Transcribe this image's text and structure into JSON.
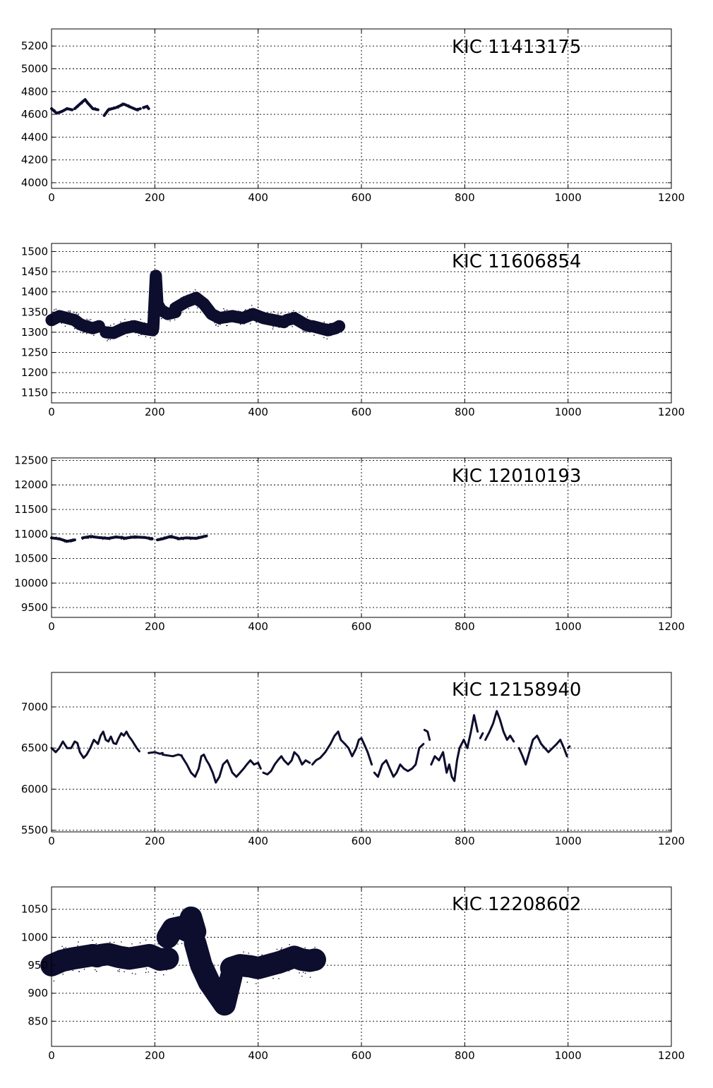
{
  "series_color": "#0d0d2e",
  "chart_data": [
    {
      "type": "scatter",
      "title": "KIC 11413175",
      "xlabel": "",
      "ylabel": "",
      "xlim": [
        0,
        1200
      ],
      "ylim": [
        3950,
        5350
      ],
      "xticks": [
        0,
        200,
        400,
        600,
        800,
        1000,
        1200
      ],
      "yticks": [
        4000,
        4200,
        4400,
        4600,
        4800,
        5000,
        5200
      ],
      "grid": true,
      "noise": 10,
      "segments": [
        {
          "x": [
            0,
            10,
            20,
            30,
            40
          ],
          "y": [
            4650,
            4610,
            4625,
            4650,
            4640
          ]
        },
        {
          "x": [
            45,
            55,
            65,
            70,
            80,
            90
          ],
          "y": [
            4650,
            4690,
            4730,
            4700,
            4650,
            4640
          ]
        },
        {
          "x": [
            102,
            110,
            125,
            140,
            155,
            165,
            172
          ],
          "y": [
            4590,
            4640,
            4660,
            4690,
            4660,
            4640,
            4650
          ]
        },
        {
          "x": [
            178,
            185,
            188
          ],
          "y": [
            4660,
            4670,
            4650
          ]
        }
      ]
    },
    {
      "type": "scatter",
      "title": "KIC 11606854",
      "xlabel": "",
      "ylabel": "",
      "xlim": [
        0,
        1200
      ],
      "ylim": [
        1125,
        1520
      ],
      "xticks": [
        0,
        200,
        400,
        600,
        800,
        1000,
        1200
      ],
      "yticks": [
        1150,
        1200,
        1250,
        1300,
        1350,
        1400,
        1450,
        1500
      ],
      "grid": true,
      "noise": 15,
      "segments": [
        {
          "x": [
            0,
            15,
            30,
            45,
            55
          ],
          "y": [
            1330,
            1340,
            1335,
            1330,
            1320
          ]
        },
        {
          "x": [
            55,
            65,
            80,
            92
          ],
          "y": [
            1320,
            1315,
            1310,
            1315
          ]
        },
        {
          "x": [
            105,
            120,
            140,
            160,
            180,
            196
          ],
          "y": [
            1300,
            1298,
            1310,
            1315,
            1308,
            1305
          ]
        },
        {
          "x": [
            197,
            202,
            205,
            212,
            225,
            240
          ],
          "y": [
            1310,
            1440,
            1370,
            1355,
            1345,
            1350
          ]
        },
        {
          "x": [
            240,
            260,
            280,
            295,
            310,
            325
          ],
          "y": [
            1360,
            1375,
            1385,
            1370,
            1345,
            1335
          ]
        },
        {
          "x": [
            325,
            350,
            370,
            390,
            410,
            430,
            450
          ],
          "y": [
            1335,
            1340,
            1335,
            1345,
            1335,
            1330,
            1325
          ]
        },
        {
          "x": [
            455,
            470,
            490,
            500
          ],
          "y": [
            1330,
            1335,
            1320,
            1315
          ]
        },
        {
          "x": [
            505,
            520,
            535,
            550,
            557
          ],
          "y": [
            1315,
            1310,
            1305,
            1310,
            1315
          ]
        }
      ]
    },
    {
      "type": "scatter",
      "title": "KIC 12010193",
      "xlabel": "",
      "ylabel": "",
      "xlim": [
        0,
        1200
      ],
      "ylim": [
        9300,
        12550
      ],
      "xticks": [
        0,
        200,
        400,
        600,
        800,
        1000,
        1200
      ],
      "yticks": [
        9500,
        10000,
        10500,
        11000,
        11500,
        12000,
        12500
      ],
      "grid": true,
      "noise": 22,
      "segments": [
        {
          "x": [
            0,
            15,
            30,
            45
          ],
          "y": [
            10920,
            10900,
            10850,
            10880
          ]
        },
        {
          "x": [
            60,
            75,
            90,
            110,
            125,
            140
          ],
          "y": [
            10920,
            10950,
            10930,
            10910,
            10940,
            10920
          ]
        },
        {
          "x": [
            140,
            160,
            180,
            195
          ],
          "y": [
            10910,
            10940,
            10930,
            10900
          ]
        },
        {
          "x": [
            205,
            215,
            230,
            245
          ],
          "y": [
            10880,
            10900,
            10950,
            10910
          ]
        },
        {
          "x": [
            245,
            260,
            280,
            300
          ],
          "y": [
            10900,
            10920,
            10910,
            10960
          ]
        }
      ]
    },
    {
      "type": "line",
      "title": "KIC 12158940",
      "xlabel": "",
      "ylabel": "",
      "xlim": [
        0,
        1200
      ],
      "ylim": [
        5480,
        7420
      ],
      "xticks": [
        0,
        200,
        400,
        600,
        800,
        1000,
        1200
      ],
      "yticks": [
        5500,
        6000,
        6500,
        7000
      ],
      "grid": true,
      "noise": 0,
      "segments": [
        {
          "x": [
            0,
            8,
            15,
            22,
            30,
            38,
            45,
            50,
            55,
            62,
            68,
            75,
            82,
            90,
            95,
            100,
            105,
            110,
            115,
            120,
            125,
            130,
            135,
            140,
            145,
            150,
            155,
            160,
            165,
            170
          ],
          "y": [
            6500,
            6450,
            6500,
            6580,
            6500,
            6500,
            6580,
            6560,
            6450,
            6380,
            6420,
            6500,
            6600,
            6550,
            6650,
            6700,
            6600,
            6580,
            6640,
            6560,
            6550,
            6620,
            6680,
            6650,
            6700,
            6640,
            6600,
            6550,
            6500,
            6460
          ]
        },
        {
          "x": [
            188,
            200,
            210,
            215
          ],
          "y": [
            6440,
            6450,
            6430,
            6440
          ]
        },
        {
          "x": [
            215,
            225,
            235,
            245,
            252
          ],
          "y": [
            6420,
            6410,
            6400,
            6420,
            6410
          ]
        },
        {
          "x": [
            252,
            262,
            270,
            278,
            285,
            290,
            295,
            300,
            305,
            312,
            318,
            325,
            332,
            340,
            345,
            350,
            358,
            365,
            372,
            378,
            385,
            392,
            400,
            405
          ],
          "y": [
            6400,
            6300,
            6200,
            6150,
            6250,
            6400,
            6420,
            6350,
            6300,
            6200,
            6080,
            6150,
            6300,
            6350,
            6280,
            6200,
            6150,
            6200,
            6250,
            6300,
            6350,
            6300,
            6320,
            6250
          ]
        },
        {
          "x": [
            410,
            418,
            425,
            432,
            438,
            445,
            450,
            458,
            465,
            470,
            478,
            485,
            492,
            500
          ],
          "y": [
            6200,
            6180,
            6220,
            6300,
            6350,
            6400,
            6350,
            6300,
            6350,
            6450,
            6400,
            6300,
            6350,
            6320
          ]
        },
        {
          "x": [
            505,
            512,
            520,
            530,
            540,
            548,
            555,
            560,
            568,
            575,
            582,
            590,
            595,
            600,
            605,
            612,
            620
          ],
          "y": [
            6300,
            6350,
            6380,
            6450,
            6550,
            6650,
            6700,
            6600,
            6550,
            6500,
            6400,
            6500,
            6600,
            6620,
            6550,
            6450,
            6300
          ]
        },
        {
          "x": [
            625,
            632,
            640,
            648,
            655,
            662,
            668,
            675,
            682,
            690,
            698,
            705,
            712,
            720
          ],
          "y": [
            6200,
            6150,
            6300,
            6350,
            6250,
            6150,
            6200,
            6300,
            6250,
            6220,
            6250,
            6300,
            6500,
            6550
          ]
        },
        {
          "x": [
            722,
            728,
            732
          ],
          "y": [
            6720,
            6700,
            6600
          ]
        },
        {
          "x": [
            735,
            742,
            750,
            758,
            765,
            770,
            775,
            780,
            785,
            790,
            798,
            805,
            812,
            818,
            825
          ],
          "y": [
            6300,
            6400,
            6350,
            6450,
            6200,
            6300,
            6150,
            6100,
            6350,
            6500,
            6600,
            6500,
            6700,
            6900,
            6700
          ]
        },
        {
          "x": [
            830,
            835
          ],
          "y": [
            6620,
            6680
          ]
        },
        {
          "x": [
            840,
            848,
            855,
            862,
            868,
            875,
            882,
            888,
            895
          ],
          "y": [
            6600,
            6700,
            6800,
            6950,
            6850,
            6700,
            6600,
            6650,
            6580
          ]
        },
        {
          "x": [
            905,
            912,
            918,
            925,
            932,
            940,
            948,
            955,
            962,
            970,
            978,
            985,
            992,
            998
          ],
          "y": [
            6500,
            6400,
            6300,
            6450,
            6600,
            6650,
            6550,
            6500,
            6450,
            6500,
            6550,
            6600,
            6500,
            6400
          ]
        },
        {
          "x": [
            1000,
            1003
          ],
          "y": [
            6500,
            6520
          ]
        }
      ]
    },
    {
      "type": "scatter",
      "title": "KIC 12208602",
      "xlabel": "",
      "ylabel": "",
      "xlim": [
        0,
        1200
      ],
      "ylim": [
        805,
        1090
      ],
      "xticks": [
        0,
        200,
        400,
        600,
        800,
        1000,
        1200
      ],
      "yticks": [
        850,
        900,
        950,
        1000,
        1050
      ],
      "grid": true,
      "noise": 20,
      "segments": [
        {
          "x": [
            0,
            20,
            40,
            60,
            80,
            88
          ],
          "y": [
            950,
            958,
            962,
            965,
            968,
            966
          ]
        },
        {
          "x": [
            95,
            110,
            130,
            150,
            170,
            190,
            210,
            225
          ],
          "y": [
            968,
            970,
            965,
            962,
            965,
            968,
            960,
            962
          ]
        },
        {
          "x": [
            225,
            235,
            250,
            262,
            270,
            278
          ],
          "y": [
            1000,
            1015,
            1018,
            1012,
            1035,
            1010
          ]
        },
        {
          "x": [
            278,
            290,
            305,
            320,
            335,
            348
          ],
          "y": [
            990,
            950,
            920,
            900,
            880,
            930
          ]
        },
        {
          "x": [
            348,
            365,
            385,
            400,
            420,
            440
          ],
          "y": [
            945,
            950,
            948,
            945,
            950,
            955
          ]
        },
        {
          "x": [
            440,
            455,
            470,
            485,
            500,
            510
          ],
          "y": [
            955,
            960,
            965,
            960,
            958,
            960
          ]
        }
      ]
    }
  ]
}
